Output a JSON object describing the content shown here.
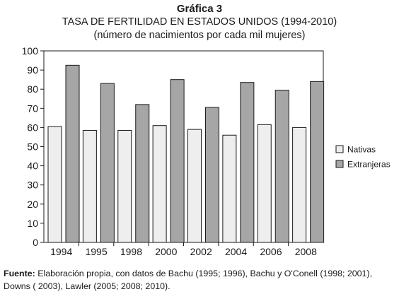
{
  "figure": {
    "label": "Gráfica 3"
  },
  "chart_data": {
    "type": "bar",
    "title": "TASA DE FERTILIDAD EN ESTADOS UNIDOS (1994-2010)",
    "subtitle": "(número de nacimientos por cada mil mujeres)",
    "xlabel": "",
    "ylabel": "",
    "categories": [
      "1994",
      "1995",
      "1998",
      "2000",
      "2002",
      "2004",
      "2006",
      "2008"
    ],
    "series": [
      {
        "name": "Nativas",
        "values": [
          60.5,
          58.5,
          58.5,
          61,
          59,
          56,
          61.5,
          60
        ],
        "color": "#eeeeee"
      },
      {
        "name": "Extranjeras",
        "values": [
          92.5,
          83,
          72,
          85,
          70.5,
          83.5,
          79.5,
          84
        ],
        "color": "#a6a6a6"
      }
    ],
    "ylim": [
      0,
      100
    ],
    "yticks": [
      0,
      10,
      20,
      30,
      40,
      50,
      60,
      70,
      80,
      90,
      100
    ],
    "grid": false,
    "legend": "right"
  },
  "source": {
    "label": "Fuente:",
    "text": " Elaboración propia, con datos de Bachu (1995; 1996), Bachu y O'Conell (1998; 2001), Downs ( 2003), Lawler (2005; 2008; 2010)."
  }
}
